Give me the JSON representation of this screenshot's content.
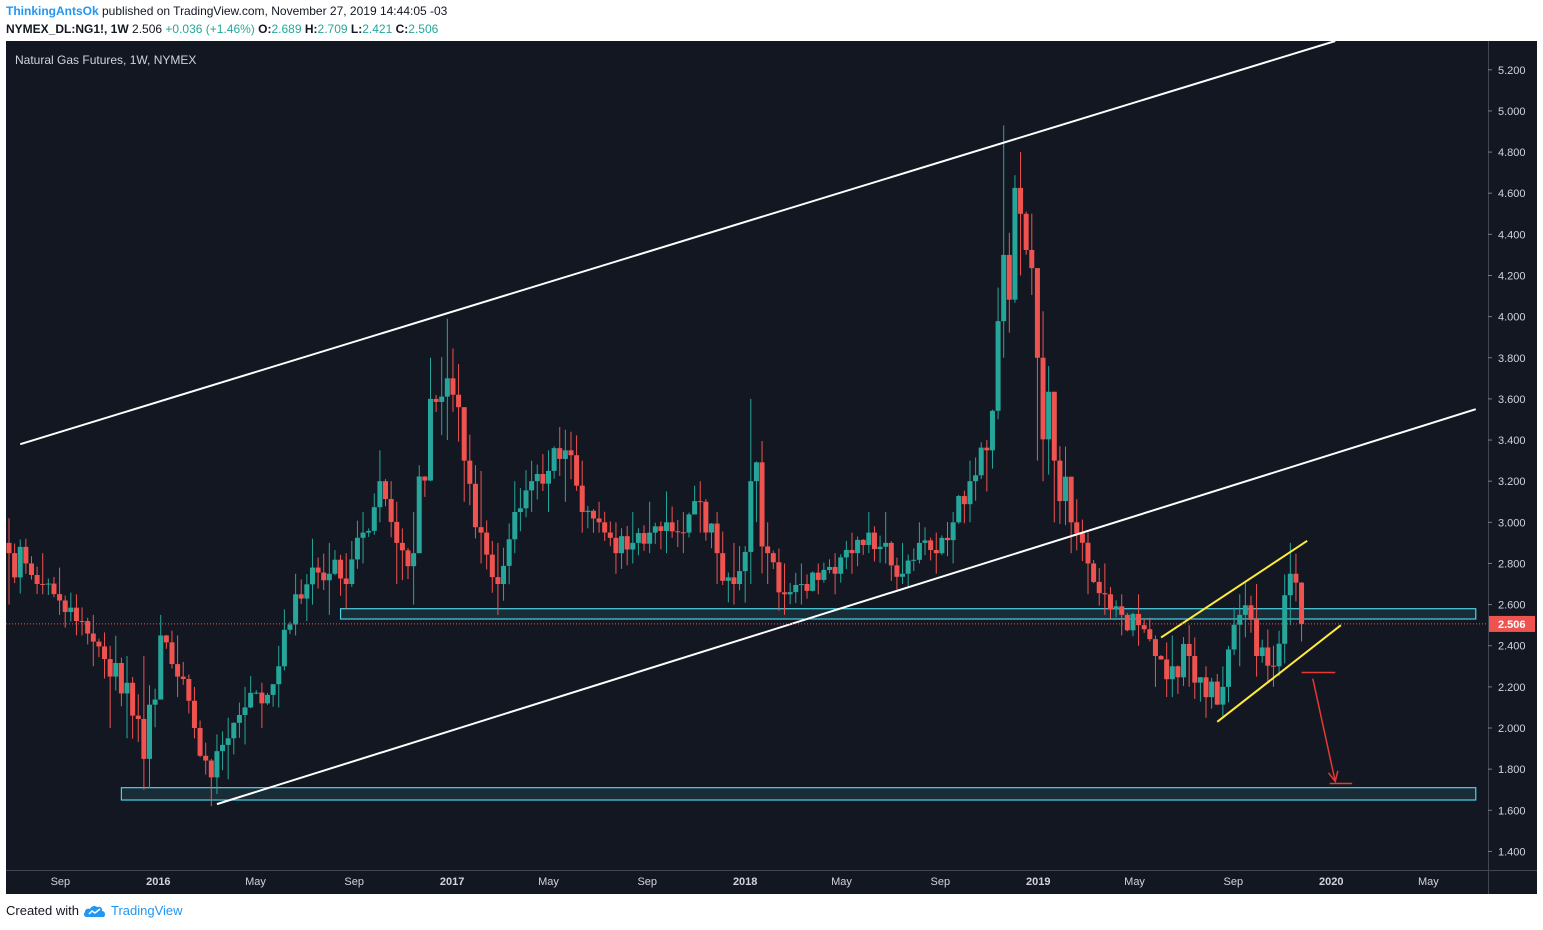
{
  "header": {
    "author": "ThinkingAntsOk",
    "published": " published on TradingView.com, November 27, 2019 14:44:05 -03",
    "symbol": "NYMEX_DL:NG1!, 1W",
    "price": "2.506",
    "change": "+0.036 (+1.46%)",
    "o_label": "O:",
    "o": "2.689",
    "h_label": "H:",
    "h": "2.709",
    "l_label": "L:",
    "l": "2.421",
    "c_label": "C:",
    "c": "2.506"
  },
  "footer": {
    "created": "Created with",
    "brand": "TradingView"
  },
  "colors": {
    "background": "#131722",
    "up": "#26a69a",
    "down": "#ef5350",
    "trendline": "#ffffff",
    "wedge": "#ffeb3b",
    "zone": "#4dd0e1",
    "target": "#e53935",
    "price_line": "#ef5350"
  },
  "chart_data": {
    "type": "candlestick",
    "title": "Natural Gas Futures, 1W, NYMEX",
    "last_price_label": "2.506",
    "ylim": [
      1.3,
      5.34
    ],
    "y_ticks": [
      {
        "label": "5.200",
        "value": 5.2
      },
      {
        "label": "5.000",
        "value": 5.0
      },
      {
        "label": "4.800",
        "value": 4.8
      },
      {
        "label": "4.600",
        "value": 4.6
      },
      {
        "label": "4.400",
        "value": 4.4
      },
      {
        "label": "4.200",
        "value": 4.2
      },
      {
        "label": "4.000",
        "value": 4.0
      },
      {
        "label": "3.800",
        "value": 3.8
      },
      {
        "label": "3.600",
        "value": 3.6
      },
      {
        "label": "3.400",
        "value": 3.4
      },
      {
        "label": "3.200",
        "value": 3.2
      },
      {
        "label": "3.000",
        "value": 3.0
      },
      {
        "label": "2.800",
        "value": 2.8
      },
      {
        "label": "2.600",
        "value": 2.6
      },
      {
        "label": "2.400",
        "value": 2.4
      },
      {
        "label": "2.200",
        "value": 2.2
      },
      {
        "label": "2.000",
        "value": 2.0
      },
      {
        "label": "1.800",
        "value": 1.8
      },
      {
        "label": "1.600",
        "value": 1.6
      },
      {
        "label": "1.400",
        "value": 1.4
      }
    ],
    "x_ticks": [
      {
        "label": "Sep",
        "date": "2015-09-01",
        "bold": false
      },
      {
        "label": "2016",
        "date": "2016-01-01",
        "bold": true
      },
      {
        "label": "May",
        "date": "2016-05-01",
        "bold": false
      },
      {
        "label": "Sep",
        "date": "2016-09-01",
        "bold": false
      },
      {
        "label": "2017",
        "date": "2017-01-01",
        "bold": true
      },
      {
        "label": "May",
        "date": "2017-05-01",
        "bold": false
      },
      {
        "label": "Sep",
        "date": "2017-09-01",
        "bold": false
      },
      {
        "label": "2018",
        "date": "2018-01-01",
        "bold": true
      },
      {
        "label": "May",
        "date": "2018-05-01",
        "bold": false
      },
      {
        "label": "Sep",
        "date": "2018-09-01",
        "bold": false
      },
      {
        "label": "2019",
        "date": "2019-01-01",
        "bold": true
      },
      {
        "label": "May",
        "date": "2019-05-01",
        "bold": false
      },
      {
        "label": "Sep",
        "date": "2019-09-01",
        "bold": false
      },
      {
        "label": "2020",
        "date": "2020-01-01",
        "bold": true
      },
      {
        "label": "May",
        "date": "2020-05-01",
        "bold": false
      }
    ],
    "anchors": [
      [
        "2015-06-29",
        2.85,
        2.6,
        3.02
      ],
      [
        "2015-07-20",
        2.8,
        2.75,
        2.92
      ],
      [
        "2015-08-10",
        2.7,
        2.65,
        2.85
      ],
      [
        "2015-08-31",
        2.62,
        2.55,
        2.78
      ],
      [
        "2015-09-21",
        2.52,
        2.45,
        2.65
      ],
      [
        "2015-10-12",
        2.42,
        2.3,
        2.55
      ],
      [
        "2015-11-02",
        2.25,
        2.0,
        2.4
      ],
      [
        "2015-11-23",
        2.22,
        1.95,
        2.35
      ],
      [
        "2015-12-14",
        1.85,
        1.7,
        2.35
      ],
      [
        "2016-01-04",
        2.45,
        2.25,
        2.55
      ],
      [
        "2016-01-25",
        2.25,
        2.15,
        2.45
      ],
      [
        "2016-02-15",
        2.0,
        1.95,
        2.2
      ],
      [
        "2016-03-07",
        1.76,
        1.62,
        1.85
      ],
      [
        "2016-03-28",
        1.95,
        1.75,
        2.05
      ],
      [
        "2016-04-18",
        2.1,
        1.92,
        2.2
      ],
      [
        "2016-05-09",
        2.12,
        2.0,
        2.22
      ],
      [
        "2016-05-30",
        2.3,
        2.1,
        2.4
      ],
      [
        "2016-06-20",
        2.65,
        2.45,
        2.75
      ],
      [
        "2016-07-11",
        2.78,
        2.6,
        2.92
      ],
      [
        "2016-08-01",
        2.75,
        2.55,
        2.9
      ],
      [
        "2016-08-22",
        2.7,
        2.58,
        2.85
      ],
      [
        "2016-09-12",
        2.95,
        2.8,
        3.05
      ],
      [
        "2016-10-03",
        3.2,
        3.0,
        3.35
      ],
      [
        "2016-10-24",
        2.9,
        2.7,
        3.1
      ],
      [
        "2016-11-14",
        2.85,
        2.6,
        3.05
      ],
      [
        "2016-12-05",
        3.6,
        3.2,
        3.8
      ],
      [
        "2016-12-26",
        3.7,
        3.4,
        3.99
      ],
      [
        "2017-01-16",
        3.3,
        3.1,
        3.55
      ],
      [
        "2017-02-06",
        2.95,
        2.8,
        3.25
      ],
      [
        "2017-02-27",
        2.7,
        2.55,
        2.9
      ],
      [
        "2017-03-20",
        3.05,
        2.85,
        3.2
      ],
      [
        "2017-04-10",
        3.2,
        3.05,
        3.3
      ],
      [
        "2017-05-01",
        3.25,
        3.05,
        3.35
      ],
      [
        "2017-05-22",
        3.35,
        3.1,
        3.45
      ],
      [
        "2017-06-12",
        3.05,
        2.95,
        3.3
      ],
      [
        "2017-07-03",
        3.0,
        2.95,
        3.1
      ],
      [
        "2017-07-24",
        2.85,
        2.75,
        3.0
      ],
      [
        "2017-08-14",
        2.9,
        2.8,
        3.05
      ],
      [
        "2017-09-04",
        2.95,
        2.85,
        3.1
      ],
      [
        "2017-09-25",
        3.0,
        2.85,
        3.15
      ],
      [
        "2017-10-16",
        2.95,
        2.85,
        3.05
      ],
      [
        "2017-11-06",
        3.1,
        2.95,
        3.2
      ],
      [
        "2017-11-27",
        2.85,
        2.7,
        3.05
      ],
      [
        "2017-12-18",
        2.7,
        2.6,
        2.9
      ],
      [
        "2018-01-08",
        3.2,
        2.7,
        3.6
      ],
      [
        "2018-01-29",
        2.85,
        2.7,
        3.0
      ],
      [
        "2018-02-19",
        2.65,
        2.55,
        2.8
      ],
      [
        "2018-03-12",
        2.7,
        2.6,
        2.8
      ],
      [
        "2018-04-02",
        2.72,
        2.65,
        2.8
      ],
      [
        "2018-04-23",
        2.75,
        2.65,
        2.85
      ],
      [
        "2018-05-14",
        2.85,
        2.75,
        2.95
      ],
      [
        "2018-06-04",
        2.95,
        2.85,
        3.05
      ],
      [
        "2018-06-25",
        2.9,
        2.8,
        3.05
      ],
      [
        "2018-07-16",
        2.75,
        2.7,
        2.9
      ],
      [
        "2018-08-06",
        2.9,
        2.8,
        3.0
      ],
      [
        "2018-08-27",
        2.85,
        2.75,
        2.95
      ],
      [
        "2018-09-17",
        3.0,
        2.8,
        3.05
      ],
      [
        "2018-10-08",
        3.2,
        3.0,
        3.3
      ],
      [
        "2018-10-29",
        3.35,
        3.15,
        3.4
      ],
      [
        "2018-11-19",
        4.3,
        3.8,
        4.93
      ],
      [
        "2018-12-10",
        4.5,
        4.2,
        4.8
      ],
      [
        "2018-12-31",
        3.8,
        3.3,
        4.2
      ],
      [
        "2019-01-21",
        3.3,
        3.0,
        3.6
      ],
      [
        "2019-02-11",
        3.0,
        2.85,
        3.2
      ],
      [
        "2019-03-04",
        2.8,
        2.65,
        2.95
      ],
      [
        "2019-03-25",
        2.65,
        2.55,
        2.8
      ],
      [
        "2019-04-15",
        2.55,
        2.45,
        2.65
      ],
      [
        "2019-05-06",
        2.5,
        2.4,
        2.65
      ],
      [
        "2019-05-27",
        2.35,
        2.2,
        2.45
      ],
      [
        "2019-06-17",
        2.3,
        2.15,
        2.45
      ],
      [
        "2019-07-08",
        2.35,
        2.2,
        2.5
      ],
      [
        "2019-07-29",
        2.15,
        2.05,
        2.3
      ],
      [
        "2019-08-19",
        2.2,
        2.05,
        2.3
      ],
      [
        "2019-09-09",
        2.55,
        2.3,
        2.65
      ],
      [
        "2019-09-30",
        2.35,
        2.25,
        2.7
      ],
      [
        "2019-10-21",
        2.3,
        2.2,
        2.4
      ],
      [
        "2019-11-11",
        2.75,
        2.5,
        2.9
      ],
      [
        "2019-11-25",
        2.506,
        2.421,
        2.709
      ]
    ],
    "annotations": {
      "outer_upper_line": [
        [
          "2015-07-13",
          3.38
        ],
        [
          "2020-01-06",
          5.34
        ]
      ],
      "outer_lower_line": [
        [
          "2016-03-14",
          1.63
        ],
        [
          "2020-06-29",
          3.55
        ]
      ],
      "support_zones": [
        {
          "from": "2016-08-15",
          "to": "2020-06-29",
          "y1": 2.53,
          "y2": 2.58
        },
        {
          "from": "2015-11-16",
          "to": "2020-06-29",
          "y1": 1.65,
          "y2": 1.71
        }
      ],
      "wedge_upper": [
        [
          "2019-06-03",
          2.44
        ],
        [
          "2019-12-02",
          2.91
        ]
      ],
      "wedge_lower": [
        [
          "2019-08-12",
          2.03
        ],
        [
          "2020-01-13",
          2.5
        ]
      ],
      "target_top": [
        [
          "2019-11-25",
          2.27
        ],
        [
          "2020-01-06",
          2.27
        ]
      ],
      "target_arrow": [
        [
          "2019-12-09",
          2.24
        ],
        [
          "2020-01-06",
          1.74
        ]
      ],
      "target_bottom": [
        [
          "2019-12-30",
          1.73
        ],
        [
          "2020-01-27",
          1.73
        ]
      ]
    }
  }
}
